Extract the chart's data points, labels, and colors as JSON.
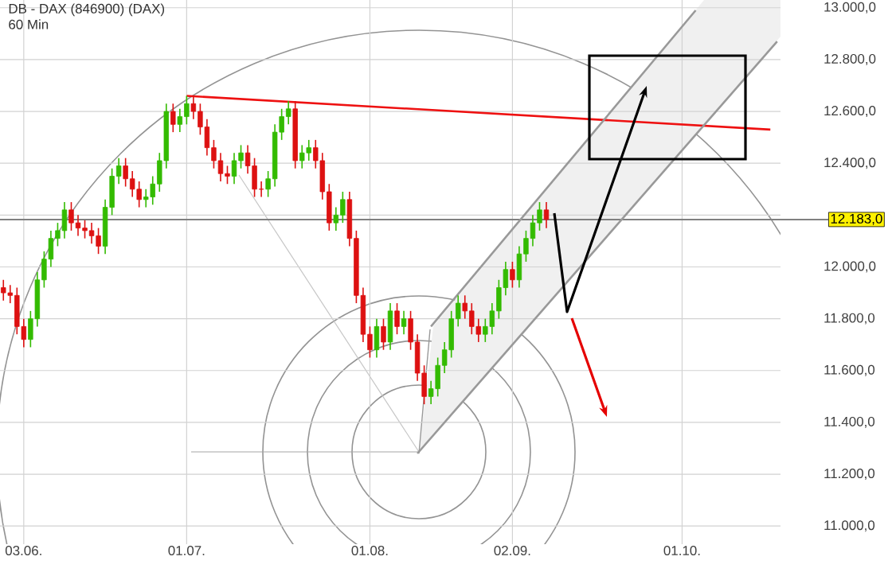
{
  "chart_data": {
    "type": "candlestick",
    "title": "DB - DAX (846900) (DAX)",
    "subtitle": "60 Min",
    "categories": [
      null,
      null,
      null,
      "03.06.",
      null,
      null,
      null,
      null,
      null,
      null,
      null,
      null,
      null,
      null,
      null,
      null,
      null,
      null,
      null,
      null,
      null,
      null,
      null,
      null,
      null,
      null,
      null,
      "01.07.",
      null,
      null,
      null,
      null,
      null,
      null,
      null,
      null,
      null,
      null,
      null,
      null,
      null,
      null,
      null,
      null,
      null,
      null,
      null,
      null,
      null,
      null,
      null,
      null,
      null,
      null,
      "01.08.",
      null,
      null,
      null,
      null,
      null,
      null,
      null,
      null,
      null,
      null,
      null,
      null,
      null,
      null,
      null,
      null,
      null,
      null,
      null,
      null,
      "02.09.",
      null,
      null,
      null,
      null,
      null,
      null,
      null,
      null,
      null,
      null,
      null,
      null,
      null,
      null,
      null,
      null,
      null,
      null,
      null,
      null,
      null,
      null,
      null,
      null,
      "01.10.",
      null,
      null,
      null,
      null,
      null,
      null,
      null,
      null,
      null,
      null,
      null,
      null,
      null,
      null
    ],
    "ohlc": [
      [
        11920,
        11950,
        11870,
        11900
      ],
      [
        11900,
        11930,
        11860,
        11890
      ],
      [
        11890,
        11920,
        11740,
        11770
      ],
      [
        11770,
        11800,
        11690,
        11720
      ],
      [
        11720,
        11830,
        11690,
        11800
      ],
      [
        11800,
        11980,
        11770,
        11950
      ],
      [
        11950,
        12060,
        11920,
        12030
      ],
      [
        12030,
        12140,
        12000,
        12110
      ],
      [
        12110,
        12170,
        12080,
        12140
      ],
      [
        12140,
        12250,
        12110,
        12220
      ],
      [
        12220,
        12250,
        12140,
        12170
      ],
      [
        12170,
        12200,
        12120,
        12150
      ],
      [
        12150,
        12180,
        12110,
        12140
      ],
      [
        12140,
        12170,
        12090,
        12120
      ],
      [
        12120,
        12150,
        12050,
        12080
      ],
      [
        12080,
        12260,
        12050,
        12230
      ],
      [
        12230,
        12380,
        12200,
        12350
      ],
      [
        12350,
        12420,
        12320,
        12390
      ],
      [
        12390,
        12420,
        12310,
        12340
      ],
      [
        12340,
        12370,
        12270,
        12300
      ],
      [
        12300,
        12330,
        12230,
        12260
      ],
      [
        12260,
        12300,
        12230,
        12270
      ],
      [
        12270,
        12350,
        12240,
        12320
      ],
      [
        12320,
        12440,
        12290,
        12410
      ],
      [
        12410,
        12630,
        12380,
        12600
      ],
      [
        12600,
        12630,
        12520,
        12550
      ],
      [
        12550,
        12610,
        12520,
        12580
      ],
      [
        12580,
        12660,
        12550,
        12630
      ],
      [
        12630,
        12660,
        12570,
        12600
      ],
      [
        12600,
        12630,
        12510,
        12540
      ],
      [
        12540,
        12570,
        12430,
        12460
      ],
      [
        12460,
        12490,
        12380,
        12410
      ],
      [
        12410,
        12440,
        12330,
        12360
      ],
      [
        12360,
        12390,
        12320,
        12350
      ],
      [
        12350,
        12440,
        12320,
        12410
      ],
      [
        12410,
        12470,
        12380,
        12440
      ],
      [
        12440,
        12470,
        12360,
        12390
      ],
      [
        12390,
        12420,
        12270,
        12300
      ],
      [
        12300,
        12330,
        12270,
        12300
      ],
      [
        12300,
        12370,
        12270,
        12340
      ],
      [
        12340,
        12550,
        12310,
        12520
      ],
      [
        12520,
        12610,
        12490,
        12580
      ],
      [
        12580,
        12640,
        12550,
        12610
      ],
      [
        12610,
        12640,
        12380,
        12410
      ],
      [
        12410,
        12470,
        12380,
        12440
      ],
      [
        12440,
        12490,
        12410,
        12460
      ],
      [
        12460,
        12490,
        12380,
        12410
      ],
      [
        12410,
        12440,
        12260,
        12290
      ],
      [
        12290,
        12320,
        12140,
        12170
      ],
      [
        12170,
        12230,
        12140,
        12200
      ],
      [
        12200,
        12290,
        12170,
        12260
      ],
      [
        12260,
        12290,
        12080,
        12110
      ],
      [
        12110,
        12140,
        11860,
        11890
      ],
      [
        11890,
        11920,
        11710,
        11740
      ],
      [
        11740,
        11770,
        11650,
        11680
      ],
      [
        11680,
        11800,
        11650,
        11770
      ],
      [
        11770,
        11800,
        11680,
        11710
      ],
      [
        11710,
        11860,
        11680,
        11830
      ],
      [
        11830,
        11860,
        11740,
        11770
      ],
      [
        11770,
        11830,
        11740,
        11800
      ],
      [
        11800,
        11830,
        11680,
        11710
      ],
      [
        11710,
        11740,
        11560,
        11590
      ],
      [
        11590,
        11620,
        11470,
        11500
      ],
      [
        11500,
        11560,
        11470,
        11530
      ],
      [
        11530,
        11650,
        11500,
        11620
      ],
      [
        11620,
        11710,
        11590,
        11680
      ],
      [
        11680,
        11830,
        11650,
        11800
      ],
      [
        11800,
        11890,
        11770,
        11860
      ],
      [
        11860,
        11890,
        11800,
        11830
      ],
      [
        11830,
        11860,
        11740,
        11770
      ],
      [
        11770,
        11800,
        11710,
        11740
      ],
      [
        11740,
        11800,
        11710,
        11770
      ],
      [
        11770,
        11860,
        11740,
        11830
      ],
      [
        11830,
        11950,
        11800,
        11920
      ],
      [
        11920,
        12020,
        11890,
        11990
      ],
      [
        11990,
        12020,
        11920,
        11950
      ],
      [
        11950,
        12080,
        11920,
        12050
      ],
      [
        12050,
        12140,
        12020,
        12110
      ],
      [
        12110,
        12200,
        12080,
        12170
      ],
      [
        12170,
        12250,
        12140,
        12220
      ],
      [
        12220,
        12250,
        12150,
        12183
      ],
      null,
      null,
      null,
      null,
      null,
      null,
      null,
      null,
      null,
      null,
      null,
      null,
      null,
      null,
      null,
      null,
      null,
      null,
      null,
      null,
      null,
      null,
      null,
      null,
      null,
      null,
      null,
      null,
      null,
      null,
      null,
      null,
      null,
      null
    ],
    "colors": [
      "#dd1111",
      "#dd1111",
      "#dd1111",
      "#dd1111",
      "#33bb00",
      "#33bb00",
      "#33bb00",
      "#33bb00",
      "#33bb00",
      "#33bb00",
      "#dd1111",
      "#dd1111",
      "#dd1111",
      "#dd1111",
      "#dd1111",
      "#33bb00",
      "#33bb00",
      "#33bb00",
      "#dd1111",
      "#dd1111",
      "#dd1111",
      "#33bb00",
      "#33bb00",
      "#33bb00",
      "#33bb00",
      "#dd1111",
      "#33bb00",
      "#33bb00",
      "#dd1111",
      "#dd1111",
      "#dd1111",
      "#dd1111",
      "#dd1111",
      "#dd1111",
      "#33bb00",
      "#33bb00",
      "#dd1111",
      "#dd1111",
      "#dd1111",
      "#33bb00",
      "#33bb00",
      "#33bb00",
      "#33bb00",
      "#dd1111",
      "#33bb00",
      "#33bb00",
      "#dd1111",
      "#dd1111",
      "#dd1111",
      "#33bb00",
      "#33bb00",
      "#dd1111",
      "#dd1111",
      "#dd1111",
      "#dd1111",
      "#33bb00",
      "#dd1111",
      "#33bb00",
      "#dd1111",
      "#33bb00",
      "#dd1111",
      "#dd1111",
      "#dd1111",
      "#33bb00",
      "#33bb00",
      "#33bb00",
      "#33bb00",
      "#33bb00",
      "#dd1111",
      "#dd1111",
      "#dd1111",
      "#33bb00",
      "#33bb00",
      "#33bb00",
      "#33bb00",
      "#dd1111",
      "#33bb00",
      "#33bb00",
      "#33bb00",
      "#33bb00",
      "#dd1111",
      null,
      null,
      null,
      null,
      null,
      null,
      null,
      null,
      null,
      null,
      null,
      null,
      null,
      null,
      null,
      null,
      null,
      null,
      null,
      null,
      null,
      null,
      null,
      null,
      null,
      null,
      null,
      null,
      null,
      null,
      null,
      null,
      null,
      null
    ],
    "series": [
      {
        "type": "line",
        "values": [
          null,
          null,
          null,
          null,
          null,
          null,
          null,
          null,
          null,
          null,
          null,
          null,
          null,
          null,
          null,
          null,
          null,
          null,
          null,
          null,
          null,
          null,
          null,
          null,
          null,
          null,
          null,
          12660,
          null,
          null,
          null,
          null,
          null,
          null,
          null,
          null,
          null,
          null,
          null,
          null,
          null,
          null,
          null,
          null,
          null,
          null,
          null,
          null,
          null,
          null,
          null,
          null,
          null,
          null,
          null,
          null,
          null,
          null,
          null,
          null,
          null,
          null,
          null,
          null,
          null,
          null,
          null,
          null,
          null,
          null,
          null,
          null,
          null,
          null,
          null,
          null,
          null,
          null,
          null,
          null,
          null,
          null,
          null,
          null,
          null,
          null,
          null,
          null,
          null,
          null,
          null,
          null,
          null,
          null,
          null,
          null,
          null,
          null,
          null,
          null,
          null,
          null,
          null,
          null,
          null,
          null,
          null,
          null,
          null,
          null,
          null,
          null,
          null,
          12530,
          null
        ],
        "color": "#ee1111"
      },
      {
        "type": "line",
        "values": [
          null,
          null,
          null,
          null,
          null,
          null,
          null,
          null,
          null,
          null,
          null,
          null,
          null,
          null,
          null,
          null,
          null,
          null,
          null,
          null,
          null,
          null,
          null,
          null,
          null,
          null,
          null,
          null,
          null,
          null,
          null,
          null,
          null,
          null,
          null,
          null,
          null,
          null,
          null,
          null,
          null,
          null,
          null,
          null,
          null,
          null,
          null,
          null,
          null,
          null,
          null,
          null,
          null,
          null,
          null,
          null,
          null,
          null,
          null,
          null,
          null,
          11280,
          null,
          null,
          null,
          null,
          null,
          null,
          null,
          null,
          null,
          null,
          null,
          null,
          null,
          null,
          null,
          null,
          null,
          null,
          null,
          null,
          null,
          null,
          null,
          null,
          null,
          null,
          null,
          null,
          null,
          null,
          null,
          null,
          null,
          null,
          null,
          null,
          null,
          null,
          null,
          null,
          null,
          null,
          null,
          null,
          null,
          null,
          null,
          null,
          null,
          null,
          null,
          null,
          12870
        ],
        "color": "#999999"
      },
      {
        "type": "line",
        "values": [
          null,
          null,
          null,
          null,
          null,
          null,
          null,
          null,
          null,
          null,
          null,
          null,
          null,
          null,
          null,
          null,
          null,
          null,
          null,
          null,
          null,
          null,
          null,
          null,
          null,
          null,
          null,
          null,
          null,
          null,
          null,
          null,
          null,
          null,
          null,
          null,
          null,
          null,
          null,
          null,
          null,
          null,
          null,
          null,
          null,
          null,
          null,
          null,
          null,
          null,
          null,
          null,
          null,
          null,
          null,
          null,
          null,
          null,
          null,
          null,
          null,
          null,
          null,
          11770,
          null,
          null,
          null,
          null,
          null,
          null,
          null,
          null,
          null,
          null,
          null,
          null,
          null,
          null,
          null,
          null,
          null,
          null,
          null,
          null,
          null,
          null,
          null,
          null,
          null,
          null,
          null,
          null,
          null,
          null,
          null,
          null,
          null,
          null,
          null,
          null,
          null,
          null,
          12990,
          null,
          null,
          null,
          null,
          null,
          null,
          null,
          null,
          null,
          null,
          null,
          null
        ],
        "color": "#999999"
      }
    ],
    "ylim": [
      10930,
      13030
    ],
    "yticks": [
      {
        "value": 11000,
        "label": "11.000,0"
      },
      {
        "value": 11200,
        "label": "11.200,0"
      },
      {
        "value": 11400,
        "label": "11.400,0"
      },
      {
        "value": 11600,
        "label": "11.600,0"
      },
      {
        "value": 11800,
        "label": "11.800,0"
      },
      {
        "value": 12000,
        "label": "12.000,0"
      },
      {
        "value": 12200,
        "label": null
      },
      {
        "value": 12400,
        "label": "12.400,0"
      },
      {
        "value": 12600,
        "label": "12.600,0"
      },
      {
        "value": 12800,
        "label": "12.800,0"
      },
      {
        "value": 13000,
        "label": "13.000,0"
      }
    ],
    "ref_lines": [
      {
        "axis": "y",
        "value": 12183,
        "label": "12.183,0",
        "color": "#808080"
      }
    ],
    "grid": true
  }
}
